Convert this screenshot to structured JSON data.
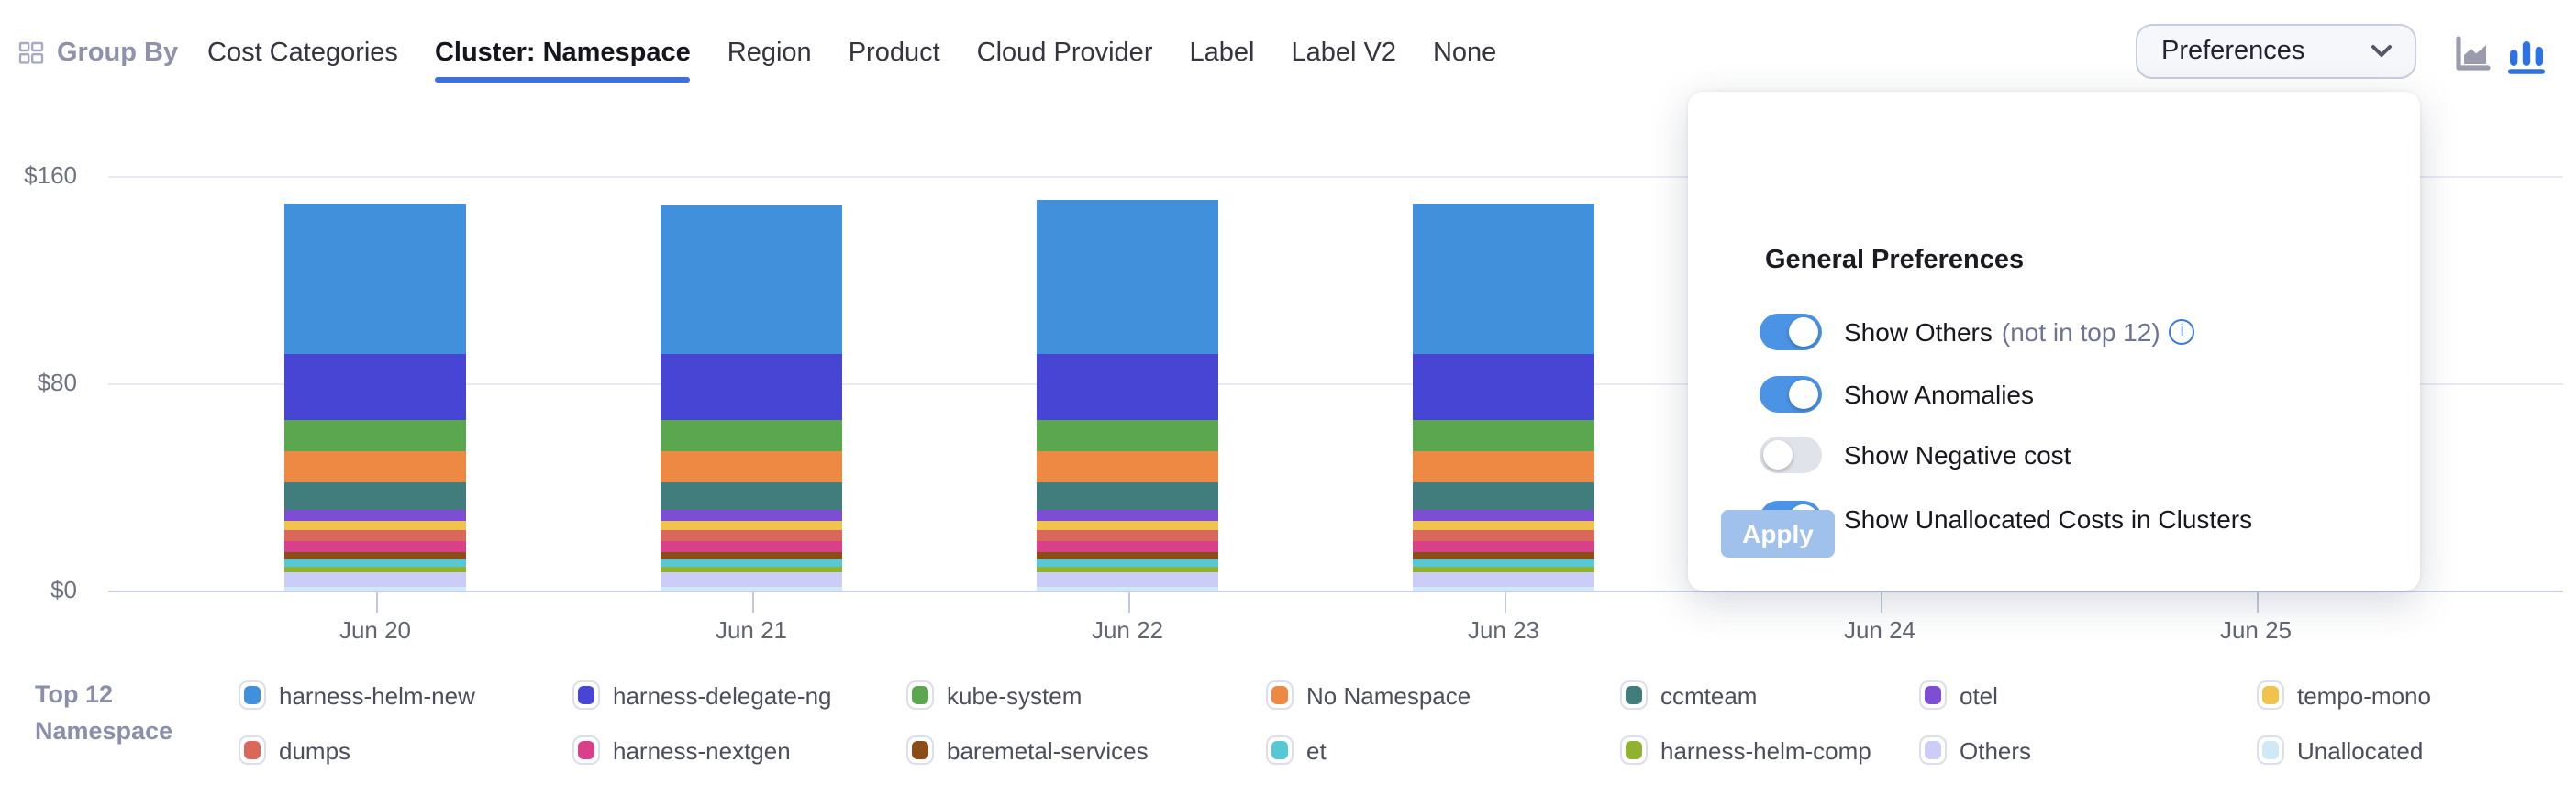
{
  "header": {
    "group_by_label": "Group By",
    "tabs": [
      {
        "label": "Cost Categories",
        "active": false
      },
      {
        "label": "Cluster: Namespace",
        "active": true
      },
      {
        "label": "Region",
        "active": false
      },
      {
        "label": "Product",
        "active": false
      },
      {
        "label": "Cloud Provider",
        "active": false
      },
      {
        "label": "Label",
        "active": false
      },
      {
        "label": "Label V2",
        "active": false
      },
      {
        "label": "None",
        "active": false
      }
    ],
    "preferences_button_label": "Preferences",
    "chart_type_selector": {
      "options": [
        "area-chart",
        "bar-chart"
      ],
      "selected": "bar-chart"
    }
  },
  "preferences_panel": {
    "title": "General Preferences",
    "toggles": [
      {
        "label": "Show Others",
        "suffix": "(not in top 12)",
        "info_icon": true,
        "on": true
      },
      {
        "label": "Show Anomalies",
        "suffix": "",
        "info_icon": false,
        "on": true
      },
      {
        "label": "Show Negative cost",
        "suffix": "",
        "info_icon": false,
        "on": false
      },
      {
        "label": "Show Unallocated Costs in Clusters",
        "suffix": "",
        "info_icon": false,
        "on": true
      }
    ],
    "apply_label": "Apply"
  },
  "legend": {
    "title_line1": "Top 12",
    "title_line2": "Namespace"
  },
  "colors": {
    "accent_blue": "#3c70df",
    "toggle_on": "#4a93e5",
    "apply_disabled": "#9fc1ec",
    "axis_line": "#c9cfe6",
    "grid_line": "#e9ebf4"
  },
  "chart_data": {
    "type": "bar",
    "stacked": true,
    "title": "",
    "xlabel": "",
    "ylabel": "",
    "categories": [
      "Jun 20",
      "Jun 21",
      "Jun 22",
      "Jun 23",
      "Jun 24",
      "Jun 25"
    ],
    "y_tick_labels": [
      "$0",
      "$80",
      "$160"
    ],
    "ylim": [
      0,
      160
    ],
    "currency": "$",
    "grid": "horizontal",
    "legend_position": "bottom",
    "series": [
      {
        "name": "harness-helm-new",
        "color": "#4190db",
        "values": [
          58,
          57.5,
          59,
          58,
          null,
          null
        ]
      },
      {
        "name": "harness-delegate-ng",
        "color": "#4745d4",
        "values": [
          25.5,
          25.5,
          25.5,
          25.5,
          null,
          null
        ]
      },
      {
        "name": "kube-system",
        "color": "#5aa750",
        "values": [
          12.5,
          12.5,
          12.5,
          12.5,
          null,
          null
        ]
      },
      {
        "name": "No Namespace",
        "color": "#ee8943",
        "values": [
          12,
          12,
          12,
          12,
          null,
          null
        ]
      },
      {
        "name": "ccmteam",
        "color": "#417d7d",
        "values": [
          10,
          10,
          10,
          10,
          null,
          null
        ]
      },
      {
        "name": "otel",
        "color": "#7d4ed3",
        "values": [
          4.3,
          4.3,
          4.3,
          4.3,
          null,
          null
        ]
      },
      {
        "name": "tempo-mono",
        "color": "#f0c34c",
        "values": [
          4,
          4,
          4,
          4,
          null,
          null
        ]
      },
      {
        "name": "dumps",
        "color": "#da675c",
        "values": [
          4,
          4,
          4,
          4,
          null,
          null
        ]
      },
      {
        "name": "harness-nextgen",
        "color": "#d84189",
        "values": [
          4,
          4,
          4,
          4,
          null,
          null
        ]
      },
      {
        "name": "baremetal-services",
        "color": "#8c4c16",
        "values": [
          3.2,
          3.2,
          3.2,
          3.2,
          null,
          null
        ]
      },
      {
        "name": "et",
        "color": "#57c7d4",
        "values": [
          2.9,
          2.9,
          2.9,
          2.9,
          null,
          null
        ]
      },
      {
        "name": "harness-helm-comp",
        "color": "#8fb32f",
        "values": [
          2.2,
          2.2,
          2.2,
          2.2,
          null,
          null
        ]
      },
      {
        "name": "Others",
        "color": "#cccdf6",
        "values": [
          5.8,
          5.8,
          5.8,
          5.8,
          null,
          null
        ]
      },
      {
        "name": "Unallocated",
        "color": "#cfeaf6",
        "values": [
          1.1,
          1.1,
          1.1,
          1.1,
          null,
          null
        ]
      }
    ]
  }
}
